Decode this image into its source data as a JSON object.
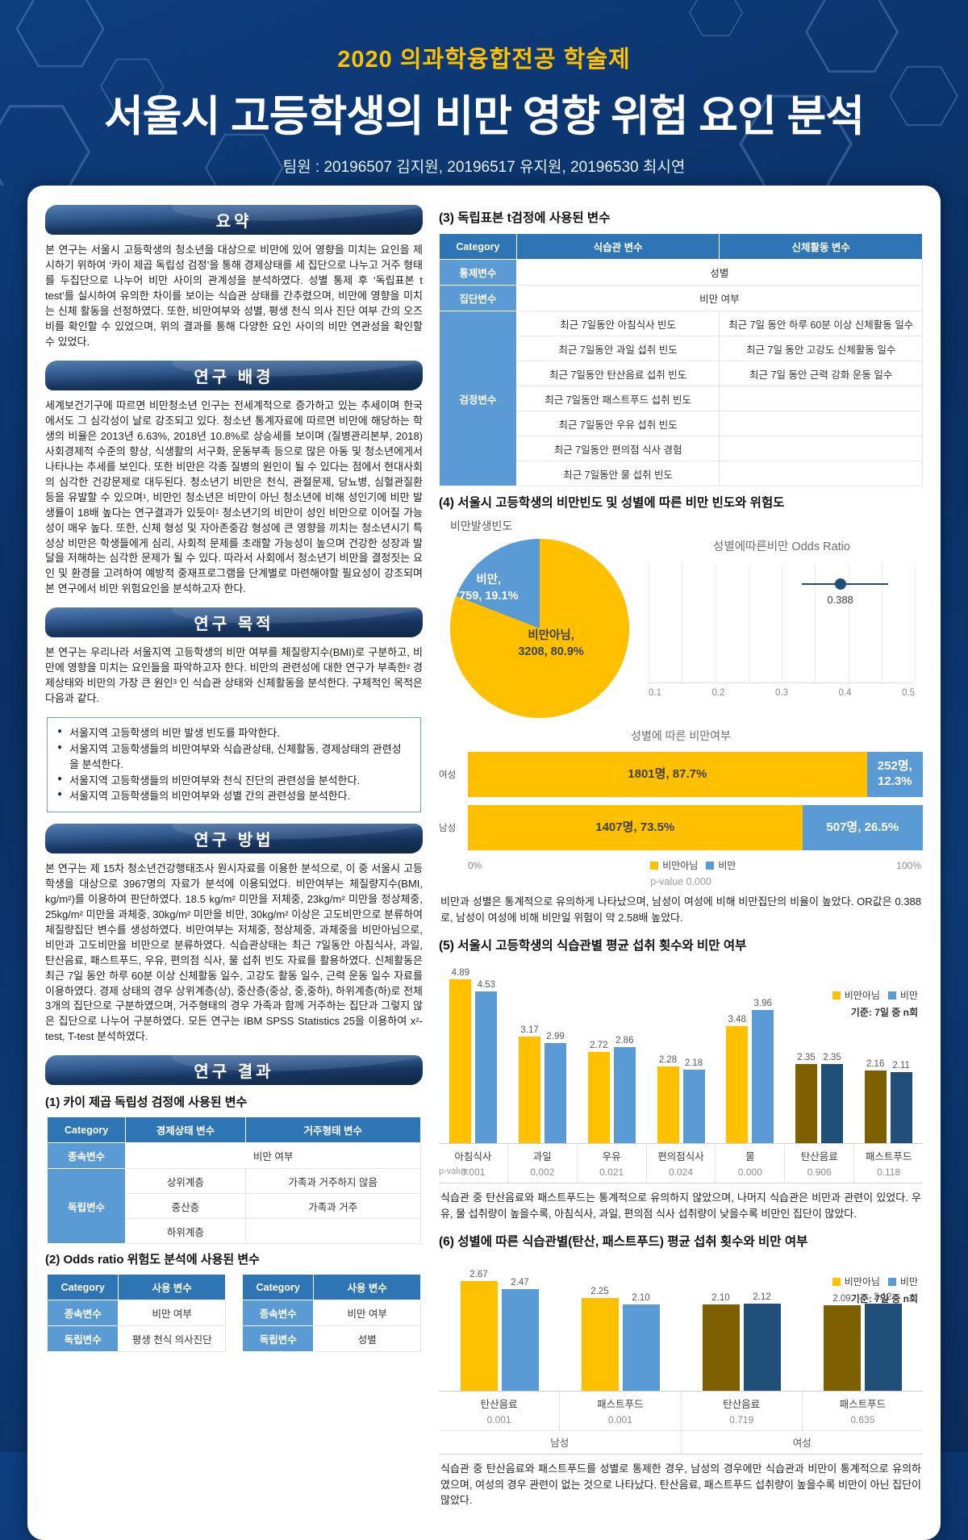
{
  "header": {
    "event": "2020 의과학융합전공 학술제",
    "title": "서울시 고등학생의 비만 영향 위험 요인 분석",
    "team": "팀원 : 20196507 김지원, 20196517 유지원, 20196530 최시연"
  },
  "colors": {
    "accent_gold": "#ffc000",
    "accent_blue": "#5b9bd5",
    "dark_navy": "#1f4e79",
    "dark_olive": "#7f6000",
    "table_header": "#2e75b6",
    "banner_navy": "#16335e"
  },
  "sections": {
    "summary": {
      "title": "요약",
      "body": "본 연구는 서울시 고등학생의 청소년을 대상으로 비만에 있어 영향을 미치는 요인을 제시하기 위하여 ‘카이 제곱 독립성 검정’을 통해 경제상태를 세 집단으로 나누고 거주 형태를 두집단으로 나누어 비만 사이의 관계성을 분석하였다. 성별 통제 후 ‘독립표본 t test’를 실시하여 유의한 차이를 보이는 식습관 상태를 간추렸으며, 비만에 영향을 미치는 신체 활동을 선정하였다. 또한, 비만여부와 성별, 평생 천식 의사 진단 여부 간의 오즈비를 확인할 수 있었으며, 위의 결과를 통해 다양한 요인 사이의 비만 연관성을 확인할 수 있었다."
    },
    "background": {
      "title": "연구 배경",
      "body": "세계보건기구에 따르면 비만청소년 인구는 전세계적으로 증가하고 있는 추세이며 한국에서도 그 심각성이 날로 강조되고 있다. 청소년 통계자료에 따르면 비만에 해당하는 학생의 비율은 2013년 6.63%, 2018년 10.8%로 상승세를 보이며 (질병관리본부, 2018) 사회경제적 수준의 향상, 식생활의 서구화, 운동부족 등으로 많은 아동 및 청소년에게서 나타나는 추세를 보인다. 또한 비만은 각종 질병의 원인이 될 수 있다는 점에서 현대사회의 심각한 건강문제로 대두된다. 청소년기 비만은 천식, 관절문제, 당뇨병, 심혈관질환 등을 유발할 수 있으며¹, 비만인 청소년은 비만이 아닌 청소년에 비해 성인기에 비만 발생률이 18배 높다는 연구결과가 있듯이¹ 청소년기의 비만이 성인 비만으로 이어질 가능성이 매우 높다. 또한, 신체 형성 및 자아존중감 형성에 큰 영향을 끼치는 청소년시기 특성상 비만은 학생들에게 심리, 사회적 문제를 초래할 가능성이 높으며 건강한 성장과 발달을 저해하는 심각한 문제가 될 수 있다. 따라서 사회에서 청소년기 비만을 결정짓는 요인 및 환경을 고려하여 예방적 중재프로그램을 단계별로 마련해야할 필요성이 강조되며 본 연구에서 비만 위험요인을 분석하고자 한다."
    },
    "purpose": {
      "title": "연구 목적",
      "body": "본 연구는 우리나라 서울지역 고등학생의 비만 여부를 체질량지수(BMI)로 구분하고, 비만에 영향을 미치는 요인들을 파악하고자 한다. 비만의 관련성에 대한 연구가 부족한² 경제상태와 비만의 가장 큰 원인³ 인 식습관 상태와 신체활동을 분석한다. 구체적인 목적은 다음과 같다.",
      "bullets": [
        "서울지역 고등학생의 비만 발생 빈도를 파악한다.",
        "서울지역 고등학생들의 비만여부와 식습관상태, 신체활동, 경제상태의 관련성을 분석한다.",
        "서울지역 고등학생들의 비만여부와 천식 진단의 관련성을 분석한다.",
        "서울지역 고등학생들의 비만여부와 성별 간의 관련성을 분석한다."
      ]
    },
    "method": {
      "title": "연구 방법",
      "body": "본 연구는 제 15차 청소년건강행태조사 원시자료를 이용한 분석으로, 이 중 서울시 고등학생을 대상으로 3967명의 자료가 분석에 이용되었다. 비만여부는 체질량지수(BMI, kg/m²)를 이용하여 판단하였다. 18.5 kg/m² 미만을 저체중, 23kg/m² 미만을 정상체중, 25kg/m² 미만을 과체중, 30kg/m² 미만을 비만, 30kg/m² 이상은 고도비만으로 분류하여 체질량집단 변수를 생성하였다. 비만여부는 저체중, 정상체중, 과체중을 비만아님으로, 비만과 고도비만을 비만으로 분류하였다. 식습관상태는 최근 7일동안 아침식사, 과일, 탄산음료, 패스트푸드, 우유, 편의점 식사, 물 섭취 빈도 자료를 활용하였다. 신체활동은 최근 7일 동안 하루 60분 이상 신체활동 일수, 고강도 활동 일수, 근력 운동 일수 자료를 이용하였다. 경제 상태의 경우 상위계층(상), 중산층(중상, 중,중하), 하위계층(하)로 전체 3개의 집단으로 구분하였으며, 거주형태의 경우 가족과 함께 거주하는 집단과 그렇지 않은 집단으로 나누어 구분하였다. 모든 연구는 IBM SPSS Statistics 25을 이용하여 x²-test, T-test 분석하였다."
    },
    "results": {
      "title": "연구 결과"
    }
  },
  "tables": {
    "chi": {
      "heading": "(1) 카이 제곱 독립성 검정에 사용된 변수",
      "headers": [
        "Category",
        "경제상태 변수",
        "거주형태 변수"
      ],
      "dep_label": "종속변수",
      "dep_value": "비만 여부",
      "indep_label": "독립변수",
      "econ_rows": [
        "상위계층",
        "중산층",
        "하위계층"
      ],
      "resid_rows": [
        "가족과 거주하지 않음",
        "가족과 거주",
        ""
      ]
    },
    "odds": {
      "heading": "(2) Odds ratio 위험도 분석에 사용된 변수",
      "tables": [
        {
          "headers": [
            "Category",
            "사용 변수"
          ],
          "rows": [
            [
              "종속변수",
              "비만 여부"
            ],
            [
              "독립변수",
              "평생 천식 의사진단"
            ]
          ]
        },
        {
          "headers": [
            "Category",
            "사용 변수"
          ],
          "rows": [
            [
              "종속변수",
              "비만 여부"
            ],
            [
              "독립변수",
              "성별"
            ]
          ]
        }
      ]
    },
    "ttest": {
      "heading": "(3) 독립표본 t검정에 사용된 변수",
      "headers": [
        "Category",
        "식습관 변수",
        "신체활동 변수"
      ],
      "control_label": "통제변수",
      "control_value": "성별",
      "group_label": "집단변수",
      "group_value": "비만 여부",
      "test_label": "검정변수",
      "test_rows": [
        [
          "최근 7일동안 아침식사 빈도",
          "최근 7일 동안 하루 60분 이상 신체활동 일수"
        ],
        [
          "최근 7일동안 과일 섭취 빈도",
          "최근 7일 동안 고강도 신체활동 일수"
        ],
        [
          "최근 7일동안 탄산음료 섭취 빈도",
          "최근 7일 동안 근력 강화 운동 일수"
        ],
        [
          "최근 7일동안 패스트푸드 섭취 빈도",
          ""
        ],
        [
          "최근 7일동안 우유 섭취 빈도",
          ""
        ],
        [
          "최근 7일동안 편의점 식사 경험",
          ""
        ],
        [
          "최근 7일동안 물 섭취 빈도",
          ""
        ]
      ]
    }
  },
  "section4": {
    "heading": "(4) 서울시 고등학생의 비만빈도 및 성별에 따른 비만 빈도와 위험도"
  },
  "notes": {
    "n4": "비만과 성별은 통계적으로 유의하게 나타났으며, 남성이 여성에 비해 비만집단의 비율이 높았다. OR값은 0.388로, 남성이 여성에 비해 비만일 위험이 약 2.58배 높았다.",
    "n5": "식습관 중 탄산음료와 패스트푸드는 통계적으로 유의하지 않았으며, 나머지 식습관은 비만과 관련이 있었다. 우유, 물 섭취량이 높을수록, 아침식사, 과일, 편의점 식사 섭취량이 낮을수록 비만인 집단이 많았다.",
    "n6": "식습관 중 탄산음료와 패스트푸드를 성별로 통제한 경우, 남성의 경우에만 식습관과 비만이 통계적으로 유의하였으며, 여성의 경우 관련이 없는 것으로 나타났다. 탄산음료, 패스트푸드 섭취량이 높을수록 비만이 아닌 집단이 많았다."
  },
  "chart_data": [
    {
      "type": "pie",
      "title": "비만발생빈도",
      "slices": [
        {
          "label": "비만,",
          "detail": "759, 19.1%",
          "value": 759,
          "pct": 19.1,
          "color": "#5b9bd5"
        },
        {
          "label": "비만아님,",
          "detail": "3208, 80.9%",
          "value": 3208,
          "pct": 80.9,
          "color": "#ffc000"
        }
      ]
    },
    {
      "type": "scatter",
      "title": "성별에따른비만 Odds Ratio",
      "point": 0.388,
      "point_label": "0.388",
      "ci_low": 0.33,
      "ci_high": 0.46,
      "xlim": [
        0.1,
        0.5
      ],
      "ticks": [
        "0.1",
        "0.2",
        "0.3",
        "0.4",
        "0.5"
      ]
    },
    {
      "type": "bar",
      "subtype": "stacked_horizontal",
      "title": "성별에 따른 비만여부",
      "categories": [
        "여성",
        "남성"
      ],
      "series": [
        {
          "name": "비만아님",
          "color": "#ffc000",
          "values": [
            87.7,
            73.5
          ],
          "labels": [
            "1801명, 87.7%",
            "1407명, 73.5%"
          ]
        },
        {
          "name": "비만",
          "color": "#5b9bd5",
          "values": [
            12.3,
            26.5
          ],
          "labels": [
            "252명, 12.3%",
            "507명, 26.5%"
          ]
        }
      ],
      "xticks": [
        "0%",
        "100%"
      ],
      "xlim": [
        0,
        100
      ],
      "pvalue": "p-value 0.000"
    },
    {
      "type": "bar",
      "title": "(5) 서울시 고등학생의 식습관별 평균 섭취 횟수와 비만 여부",
      "categories": [
        "아침식사",
        "과일",
        "우유",
        "편의점식사",
        "물",
        "탄산음료",
        "패스트푸드"
      ],
      "series": [
        {
          "name": "비만아님",
          "values": [
            4.89,
            3.17,
            2.72,
            2.28,
            3.48,
            2.35,
            2.16
          ]
        },
        {
          "name": "비만",
          "values": [
            4.53,
            2.99,
            2.86,
            2.18,
            3.96,
            2.35,
            2.11
          ]
        }
      ],
      "p_label": "p-value",
      "p_values": [
        "0.001",
        "0.002",
        "0.021",
        "0.024",
        "0.000",
        "0.906",
        "0.118"
      ],
      "legend": [
        "비만아님",
        "비만"
      ],
      "legend_note": "기준: 7일 중 n회",
      "ylim": [
        0,
        5
      ],
      "muted_from": 5,
      "colors": [
        "#ffc000",
        "#5b9bd5"
      ],
      "muted_colors": [
        "#7f6000",
        "#1f4e79"
      ]
    },
    {
      "type": "bar",
      "title": "(6) 성별에 따른 식습관별(탄산, 패스트푸드) 평균 섭취 횟수와 비만 여부",
      "categories": [
        "탄산음료",
        "패스트푸드",
        "탄산음료",
        "패스트푸드"
      ],
      "group_labels": [
        "남성",
        "여성"
      ],
      "series": [
        {
          "name": "비만아님",
          "values": [
            2.67,
            2.25,
            2.1,
            2.09
          ]
        },
        {
          "name": "비만",
          "values": [
            2.47,
            2.1,
            2.12,
            2.12
          ]
        }
      ],
      "p_values": [
        "0.001",
        "0.001",
        "0.719",
        "0.635"
      ],
      "legend": [
        "비만아님",
        "비만"
      ],
      "legend_note": "기준: 7일 중 n회",
      "ylim": [
        0,
        3
      ],
      "muted_from": 2,
      "colors": [
        "#ffc000",
        "#5b9bd5"
      ],
      "muted_colors": [
        "#7f6000",
        "#1f4e79"
      ]
    }
  ]
}
